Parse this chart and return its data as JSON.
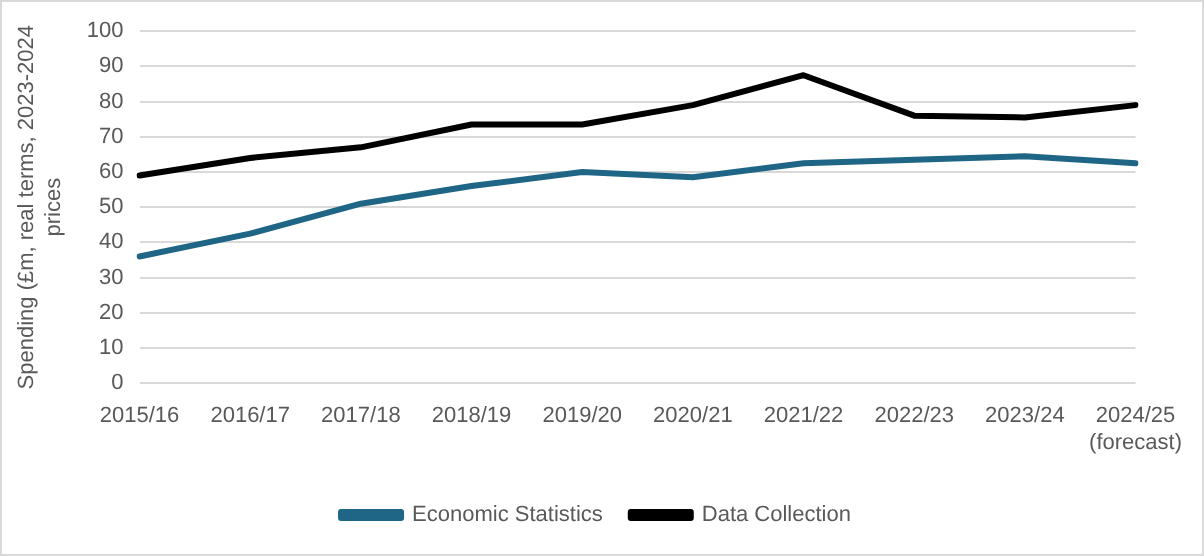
{
  "chart_data": {
    "type": "line",
    "ylabel": "Spending (£m, real terms, 2023-2024 prices",
    "categories": [
      "2015/16",
      "2016/17",
      "2017/18",
      "2018/19",
      "2019/20",
      "2020/21",
      "2021/22",
      "2022/23",
      "2023/24",
      "2024/25\n(forecast)"
    ],
    "series": [
      {
        "name": "Economic Statistics",
        "color": "#1f6585",
        "values": [
          36,
          42.5,
          51,
          56,
          60,
          58.5,
          62.5,
          63.5,
          64.5,
          62.5
        ]
      },
      {
        "name": "Data Collection",
        "color": "#000000",
        "values": [
          59,
          64,
          67,
          73.5,
          73.5,
          79,
          87.5,
          76,
          75.5,
          79
        ]
      }
    ],
    "ylim": [
      0,
      100
    ],
    "yticks": [
      0,
      10,
      20,
      30,
      40,
      50,
      60,
      70,
      80,
      90,
      100
    ],
    "grid": "y",
    "legend": "bottom",
    "marker": "none",
    "line_style": "solid"
  }
}
